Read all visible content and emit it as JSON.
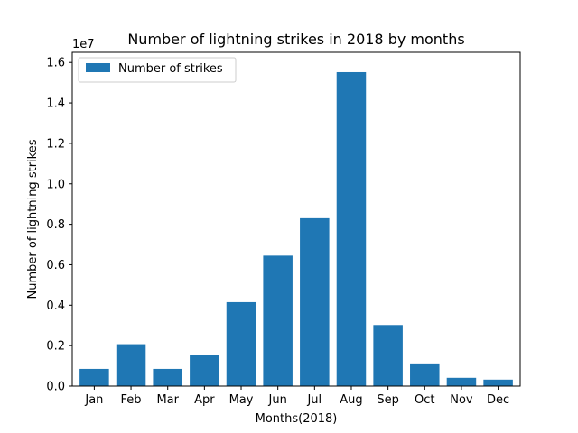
{
  "chart_data": {
    "type": "bar",
    "title": "Number of lightning strikes in 2018 by months",
    "xlabel": "Months(2018)",
    "ylabel": "Number of lightning strikes",
    "y_offset_label": "1e7",
    "y_scale": 10000000,
    "ylim": [
      0,
      16500000
    ],
    "yticks": [
      0,
      2000000,
      4000000,
      6000000,
      8000000,
      10000000,
      12000000,
      14000000,
      16000000
    ],
    "ytick_labels": [
      "0.0",
      "0.2",
      "0.4",
      "0.6",
      "0.8",
      "1.0",
      "1.2",
      "1.4",
      "1.6"
    ],
    "categories": [
      "Jan",
      "Feb",
      "Mar",
      "Apr",
      "May",
      "Jun",
      "Jul",
      "Aug",
      "Sep",
      "Oct",
      "Nov",
      "Dec"
    ],
    "series": [
      {
        "name": "Number of strikes",
        "color": "#1f77b4",
        "values": [
          850000,
          2070000,
          850000,
          1520000,
          4150000,
          6450000,
          8300000,
          15520000,
          3020000,
          1120000,
          410000,
          320000
        ]
      }
    ],
    "legend_position": "top-left",
    "grid": false
  }
}
